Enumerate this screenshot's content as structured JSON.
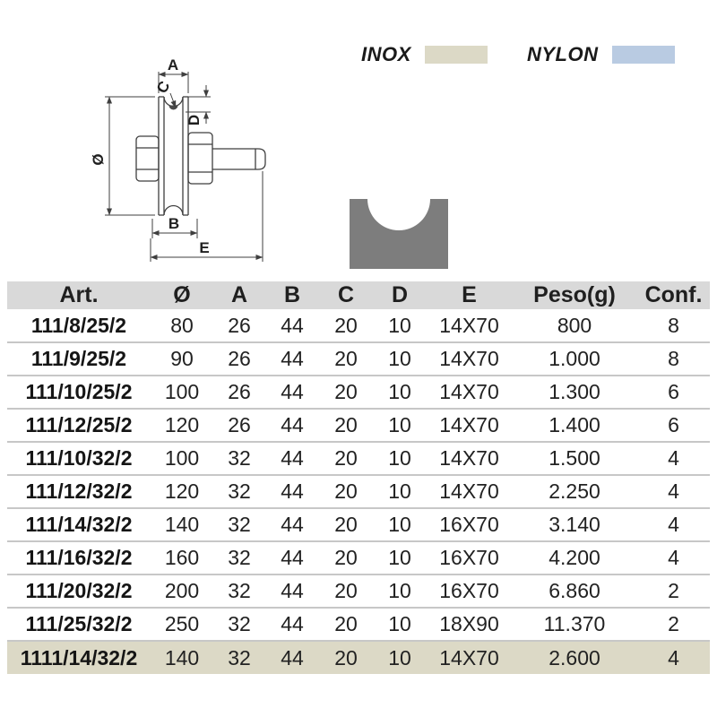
{
  "legend": {
    "inox": {
      "label": "INOX",
      "color": "#dcd9c6"
    },
    "nylon": {
      "label": "NYLON",
      "color": "#b9cbe2"
    }
  },
  "drawing": {
    "dim_a": "A",
    "dim_b": "B",
    "dim_c": "C",
    "dim_d": "D",
    "dim_e": "E",
    "dim_diameter": "Ø"
  },
  "groove_profile_color": "#7d7d7d",
  "table": {
    "header_bg": "#d9d9d9",
    "headers": [
      "Art.",
      "Ø",
      "A",
      "B",
      "C",
      "D",
      "E",
      "Peso(g)",
      "Conf."
    ],
    "rows": [
      {
        "art": "111/8/25/2",
        "dia": "80",
        "a": "26",
        "b": "44",
        "c": "20",
        "d": "10",
        "e": "14X70",
        "peso": "800",
        "conf": "8",
        "highlight": false
      },
      {
        "art": "111/9/25/2",
        "dia": "90",
        "a": "26",
        "b": "44",
        "c": "20",
        "d": "10",
        "e": "14X70",
        "peso": "1.000",
        "conf": "8",
        "highlight": false
      },
      {
        "art": "111/10/25/2",
        "dia": "100",
        "a": "26",
        "b": "44",
        "c": "20",
        "d": "10",
        "e": "14X70",
        "peso": "1.300",
        "conf": "6",
        "highlight": false
      },
      {
        "art": "111/12/25/2",
        "dia": "120",
        "a": "26",
        "b": "44",
        "c": "20",
        "d": "10",
        "e": "14X70",
        "peso": "1.400",
        "conf": "6",
        "highlight": false
      },
      {
        "art": "111/10/32/2",
        "dia": "100",
        "a": "32",
        "b": "44",
        "c": "20",
        "d": "10",
        "e": "14X70",
        "peso": "1.500",
        "conf": "4",
        "highlight": false
      },
      {
        "art": "111/12/32/2",
        "dia": "120",
        "a": "32",
        "b": "44",
        "c": "20",
        "d": "10",
        "e": "14X70",
        "peso": "2.250",
        "conf": "4",
        "highlight": false
      },
      {
        "art": "111/14/32/2",
        "dia": "140",
        "a": "32",
        "b": "44",
        "c": "20",
        "d": "10",
        "e": "16X70",
        "peso": "3.140",
        "conf": "4",
        "highlight": false
      },
      {
        "art": "111/16/32/2",
        "dia": "160",
        "a": "32",
        "b": "44",
        "c": "20",
        "d": "10",
        "e": "16X70",
        "peso": "4.200",
        "conf": "4",
        "highlight": false
      },
      {
        "art": "111/20/32/2",
        "dia": "200",
        "a": "32",
        "b": "44",
        "c": "20",
        "d": "10",
        "e": "16X70",
        "peso": "6.860",
        "conf": "2",
        "highlight": false
      },
      {
        "art": "111/25/32/2",
        "dia": "250",
        "a": "32",
        "b": "44",
        "c": "20",
        "d": "10",
        "e": "18X90",
        "peso": "11.370",
        "conf": "2",
        "highlight": false
      },
      {
        "art": "1111/14/32/2",
        "dia": "140",
        "a": "32",
        "b": "44",
        "c": "20",
        "d": "10",
        "e": "14X70",
        "peso": "2.600",
        "conf": "4",
        "highlight": true
      }
    ]
  }
}
